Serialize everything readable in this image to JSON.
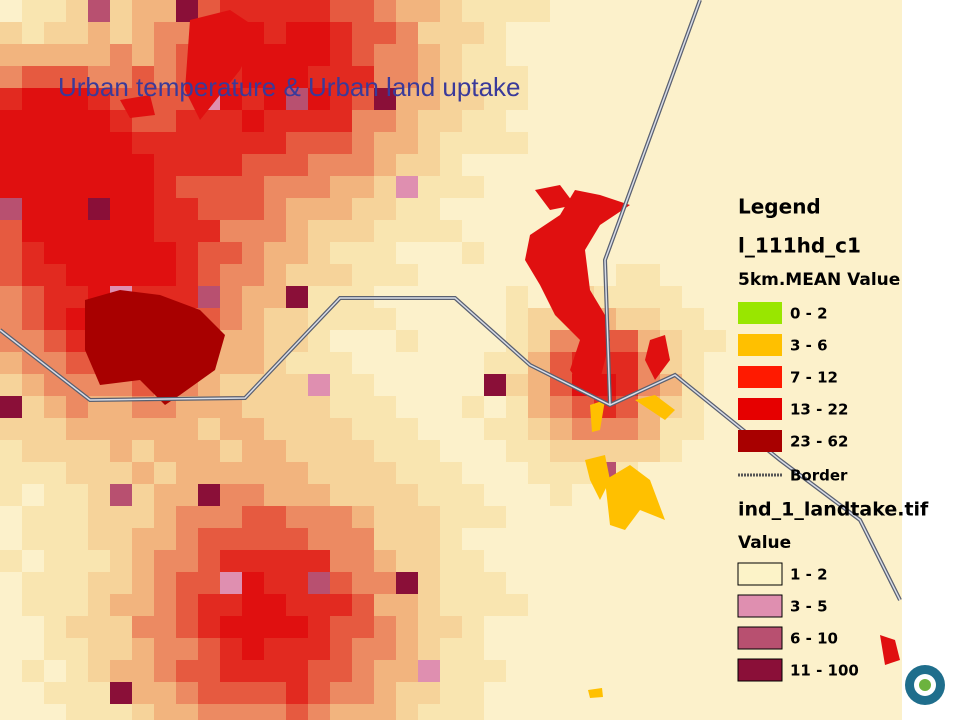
{
  "title": "Urban temperature & Urban land uptake",
  "legend": {
    "title": "Legend",
    "layers": [
      {
        "name": "l_111hd_c1",
        "field": "5km.MEAN Value",
        "classes": [
          {
            "label": "0 - 2",
            "color": "#99e600"
          },
          {
            "label": "3 - 6",
            "color": "#ffc000"
          },
          {
            "label": "7 - 12",
            "color": "#ff1a00"
          },
          {
            "label": "13 - 22",
            "color": "#e60000"
          },
          {
            "label": "23 - 62",
            "color": "#a80000"
          }
        ]
      },
      {
        "name": "ind_1_landtake.tif",
        "field": "Value",
        "classes": [
          {
            "label": "1 - 2",
            "color": "#fcf3c8"
          },
          {
            "label": "3 - 5",
            "color": "#df8fb0"
          },
          {
            "label": "6 - 10",
            "color": "#b85070"
          },
          {
            "label": "11 - 100",
            "color": "#8a0f38"
          }
        ]
      }
    ],
    "border_label": "Border"
  }
}
